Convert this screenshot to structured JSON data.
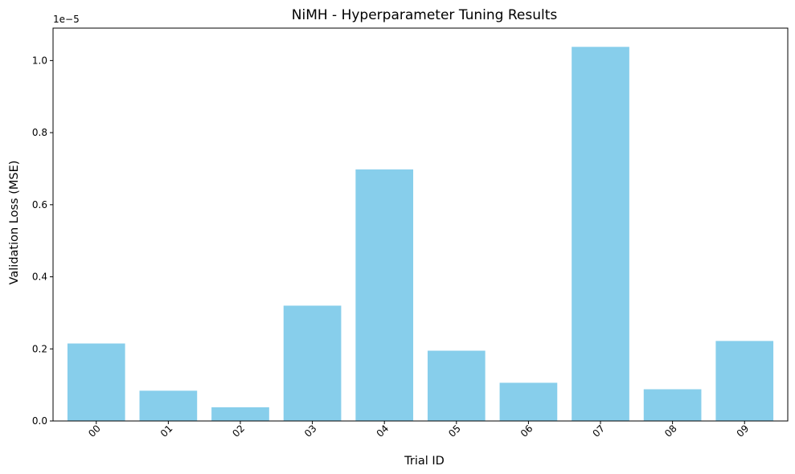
{
  "chart_data": {
    "type": "bar",
    "title": "NiMH - Hyperparameter Tuning Results",
    "xlabel": "Trial ID",
    "ylabel": "Validation Loss (MSE)",
    "y_offset_label": "1e−5",
    "y_scale_factor": 1e-05,
    "categories": [
      "00",
      "01",
      "02",
      "03",
      "04",
      "05",
      "06",
      "07",
      "08",
      "09"
    ],
    "values": [
      2.15e-06,
      8.4e-07,
      3.8e-07,
      3.2e-06,
      6.98e-06,
      1.95e-06,
      1.06e-06,
      1.038e-05,
      8.8e-07,
      2.22e-06
    ],
    "ylim": [
      0,
      1.09e-05
    ],
    "yticks": [
      0,
      2e-06,
      4e-06,
      6e-06,
      8e-06,
      1e-05
    ],
    "ytick_labels": [
      "0.0",
      "0.2",
      "0.4",
      "0.6",
      "0.8",
      "1.0"
    ],
    "bar_color": "#87CEEB",
    "grid": false,
    "xtick_rotation": 45
  }
}
